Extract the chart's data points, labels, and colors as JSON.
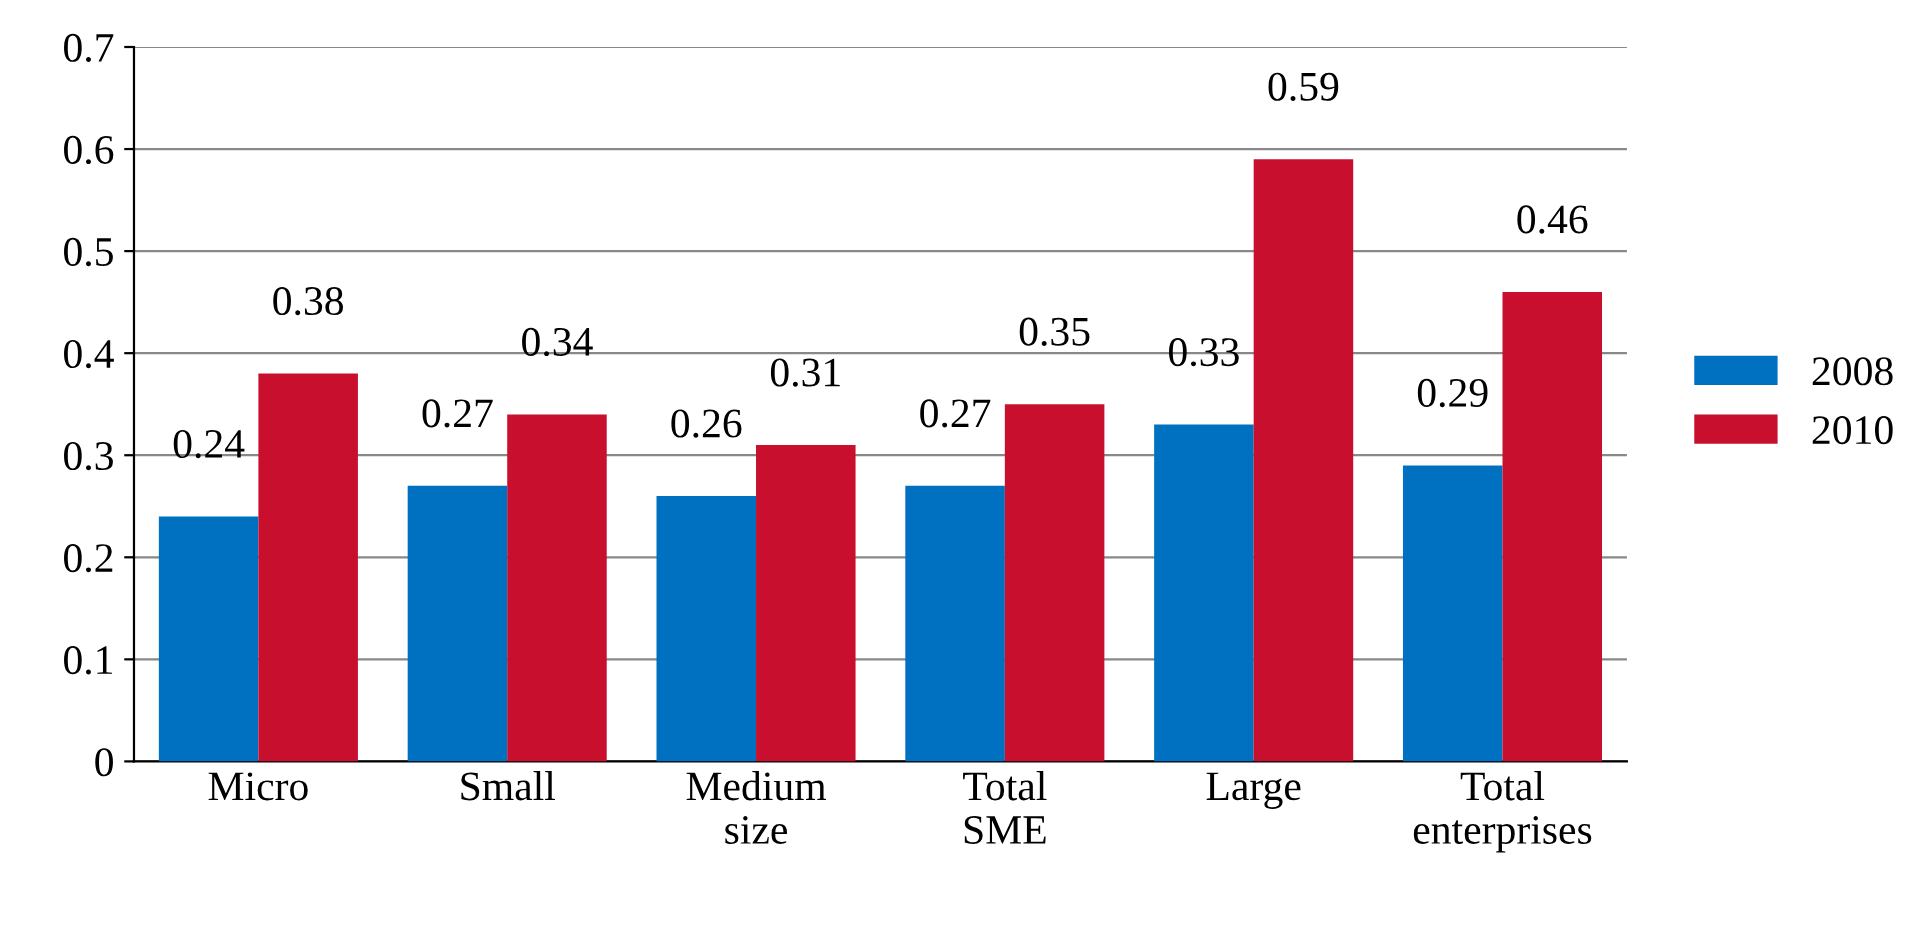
{
  "chart_data": {
    "type": "bar",
    "categories": [
      "Micro",
      "Small",
      "Medium\nsize",
      "Total\nSME",
      "Large",
      "Total\nenterprises"
    ],
    "series": [
      {
        "name": "2008",
        "color": "#0070c0",
        "values": [
          0.24,
          0.27,
          0.26,
          0.27,
          0.33,
          0.29
        ]
      },
      {
        "name": "2010",
        "color": "#c8102e",
        "values": [
          0.38,
          0.34,
          0.31,
          0.35,
          0.59,
          0.46
        ]
      }
    ],
    "ylim": [
      0,
      0.7
    ],
    "yticks": [
      0,
      0.1,
      0.2,
      0.3,
      0.4,
      0.5,
      0.6,
      0.7
    ],
    "grid": "y",
    "legend": "right",
    "data_labels": true
  }
}
